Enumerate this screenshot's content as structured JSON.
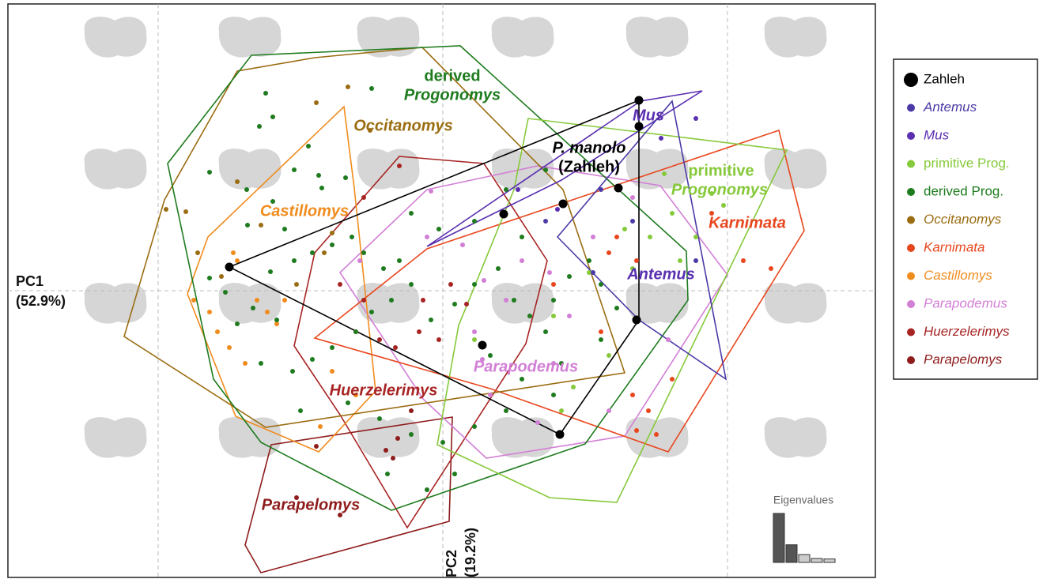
{
  "chart_data": {
    "type": "scatter",
    "xlabel": [
      "PC1",
      "(52.9%)"
    ],
    "ylabel": [
      "PC2",
      "(19.2%)"
    ],
    "xlim": [
      -550,
      547
    ],
    "ylim": [
      -363,
      363
    ],
    "series": [
      {
        "name": "Zahleh",
        "color": "#000000",
        "font_style": "normal",
        "x": [
          248,
          248,
          222,
          152,
          77,
          -270,
          50,
          245,
          148
        ],
        "y": [
          241,
          208,
          130,
          110,
          97,
          30,
          -69,
          -37,
          -182
        ],
        "hull_x": [
          -270,
          248,
          248,
          148
        ],
        "hull_y": [
          30,
          241,
          -37,
          -182
        ]
      },
      {
        "name": "Antemus",
        "color": "#4b3aa6",
        "font_style": "italic",
        "x": [
          130,
          190,
          240,
          200,
          320
        ],
        "y": [
          88,
          23,
          88,
          128,
          38
        ],
        "hull_x": [
          145,
          290,
          358,
          248
        ],
        "hull_y": [
          68,
          240,
          -112,
          -37
        ]
      },
      {
        "name": "Mus",
        "color": "#5a2fb0",
        "font_style": "italic",
        "x": [
          276,
          95,
          145,
          320
        ],
        "y": [
          193,
          128,
          103,
          218
        ],
        "hull_x": [
          -20,
          250,
          328,
          150
        ],
        "hull_y": [
          56,
          240,
          253,
          140
        ]
      },
      {
        "name": "primitive Prog.",
        "color": "#86c93a",
        "font_style": "normal",
        "x": [
          280,
          340,
          290,
          262,
          300,
          240,
          185,
          230,
          140,
          165,
          150,
          210,
          40,
          320,
          355
        ],
        "y": [
          148,
          123,
          98,
          68,
          38,
          28,
          23,
          78,
          -32,
          -122,
          -152,
          -82,
          -62,
          68,
          108
        ],
        "hull_x": [
          108,
          435,
          220,
          135,
          -7,
          20,
          90
        ],
        "hull_y": [
          218,
          178,
          -268,
          -262,
          -195,
          -44,
          128
        ]
      },
      {
        "name": "derived Prog.",
        "color": "#1e7b1e",
        "font_style": "normal",
        "x": [
          -90,
          -224,
          -215,
          -232,
          -248,
          -295,
          -188,
          -157,
          -153,
          -123,
          -215,
          -247,
          -295,
          -218,
          -188,
          -165,
          -140,
          -115,
          -100,
          -75,
          -55,
          -40,
          -65,
          -90,
          -110,
          -140,
          -165,
          -190,
          -230,
          -260,
          -275,
          -240,
          -210,
          -15,
          15,
          40,
          70,
          90,
          110,
          130,
          140,
          160,
          185,
          200,
          220,
          150,
          100,
          80,
          40,
          0,
          -40,
          -80,
          -120,
          -180,
          15,
          -20,
          -70,
          60,
          100,
          130,
          80,
          -170,
          -200,
          -40,
          -5,
          40,
          140,
          200
        ],
        "y": [
          256,
          250,
          220,
          208,
          128,
          150,
          153,
          146,
          130,
          143,
          113,
          83,
          16,
          24,
          38,
          48,
          58,
          68,
          48,
          28,
          38,
          8,
          -12,
          -27,
          -52,
          -72,
          -87,
          -102,
          -92,
          -42,
          -2,
          -22,
          -37,
          -37,
          -17,
          8,
          28,
          -12,
          -32,
          -52,
          -12,
          18,
          38,
          8,
          -22,
          -92,
          -112,
          -152,
          -172,
          -192,
          -182,
          -162,
          -142,
          -152,
          -232,
          -252,
          -232,
          -82,
          68,
          153,
          128,
          183,
          78,
          98,
          78,
          88,
          -132,
          -62
        ],
        "hull_x": [
          -242,
          22,
          308,
          310,
          180,
          -65,
          -230,
          -290,
          -348
        ],
        "hull_y": [
          298,
          310,
          50,
          -12,
          -194,
          -278,
          -192,
          -112,
          161
        ]
      },
      {
        "name": "Occitanomys",
        "color": "#9b6d12",
        "font_style": "italic",
        "x": [
          -160,
          -120,
          -325,
          -260,
          -230,
          -150,
          -280,
          -185,
          -140,
          -92,
          -350,
          -310
        ],
        "y": [
          238,
          258,
          100,
          138,
          83,
          48,
          18,
          8,
          73,
          203,
          103,
          48
        ],
        "hull_x": [
          -162,
          -26,
          152,
          230,
          -224,
          -403,
          -352,
          -260
        ],
        "hull_y": [
          295,
          308,
          128,
          -104,
          -173,
          -58,
          115,
          278
        ]
      },
      {
        "name": "Karnimata",
        "color": "#e8471e",
        "font_style": "italic",
        "x": [
          340,
          380,
          415,
          220,
          245,
          210,
          240,
          260,
          270,
          290,
          140,
          200,
          245
        ],
        "y": [
          98,
          38,
          28,
          68,
          38,
          48,
          -132,
          -152,
          -182,
          -112,
          8,
          -52,
          -177
        ],
        "hull_x": [
          -20,
          425,
          457,
          285,
          60,
          -162
        ],
        "hull_y": [
          53,
          203,
          76,
          -204,
          -124,
          -60
        ]
      },
      {
        "name": "Castillomys",
        "color": "#f08c1e",
        "font_style": "italic",
        "x": [
          -265,
          -315,
          -285,
          -270,
          -235,
          -222,
          -210,
          -200,
          -250,
          -155,
          -110,
          -260,
          -295,
          -140
        ],
        "y": [
          48,
          -12,
          -52,
          -72,
          -12,
          -27,
          -42,
          -12,
          -92,
          -172,
          -132,
          38,
          -27,
          -102
        ],
        "hull_x": [
          -125,
          -112,
          -85,
          -157,
          -262,
          -323,
          -297
        ],
        "hull_y": [
          233,
          130,
          -127,
          -204,
          -159,
          -4,
          68
        ]
      },
      {
        "name": "Parapodemus",
        "color": "#d27fd6",
        "font_style": "italic",
        "x": [
          -15,
          -20,
          52,
          80,
          100,
          135,
          160,
          140,
          60,
          50,
          25,
          190,
          240,
          285,
          210,
          120,
          -105,
          40
        ],
        "y": [
          126,
          68,
          13,
          -12,
          38,
          23,
          -32,
          -92,
          -132,
          -87,
          58,
          68,
          118,
          -62,
          -152,
          -167,
          38,
          -52
        ],
        "hull_x": [
          -20,
          120,
          275,
          360,
          230,
          55,
          -25,
          -130
        ],
        "hull_y": [
          128,
          158,
          133,
          20,
          -184,
          -212,
          -137,
          23
        ]
      },
      {
        "name": "Huerzelerimys",
        "color": "#a82424",
        "font_style": "italic",
        "x": [
          -130,
          -100,
          -80,
          -60,
          -30,
          -5,
          10,
          30,
          -25,
          -110,
          -55,
          -100
        ],
        "y": [
          8,
          -12,
          -62,
          -72,
          -52,
          -62,
          8,
          -17,
          -12,
          -52,
          158,
          118
        ],
        "hull_x": [
          -55,
          52,
          132,
          105,
          -45,
          -130,
          -188,
          -162
        ],
        "hull_y": [
          170,
          161,
          38,
          -67,
          -300,
          -157,
          -70,
          48
        ]
      },
      {
        "name": "Parapelomys",
        "color": "#8f1c1c",
        "font_style": "italic",
        "x": [
          -72,
          -63,
          -57,
          -40,
          -185,
          -130,
          -160
        ],
        "y": [
          -202,
          -212,
          -187,
          -152,
          -262,
          -284,
          -197
        ],
        "hull_x": [
          -217,
          12,
          8,
          -230,
          -250
        ],
        "hull_y": [
          -195,
          -160,
          -292,
          -357,
          -322
        ]
      }
    ],
    "annotations": [
      {
        "text": "derived",
        "color": "#1e7b1e",
        "font_style": "normal"
      },
      {
        "text": "Progonomys",
        "color": "#1e7b1e",
        "font_style": "italic"
      },
      {
        "text": "Occitanomys",
        "color": "#9b6d12",
        "font_style": "italic"
      },
      {
        "text": "Mus",
        "color": "#5a2fb0",
        "font_style": "italic"
      },
      {
        "text": "P. manolo",
        "color": "#000000",
        "font_style": "italic"
      },
      {
        "text": "(Zahleh)",
        "color": "#000000",
        "font_style": "normal"
      },
      {
        "text": "primitive",
        "color": "#86c93a",
        "font_style": "normal"
      },
      {
        "text": "Progonomys",
        "color": "#86c93a",
        "font_style": "italic"
      },
      {
        "text": "Karnimata",
        "color": "#e8471e",
        "font_style": "italic"
      },
      {
        "text": "Castillomys",
        "color": "#f08c1e",
        "font_style": "italic"
      },
      {
        "text": "Antemus",
        "color": "#5a30b0",
        "font_style": "italic"
      },
      {
        "text": "Parapodemus",
        "color": "#d27fd6",
        "font_style": "italic"
      },
      {
        "text": "Huerzelerimys",
        "color": "#a82424",
        "font_style": "italic"
      },
      {
        "text": "Parapelomys",
        "color": "#8f1c1c",
        "font_style": "italic"
      }
    ],
    "inset": {
      "title": "Eigenvalues",
      "values": [
        1,
        0.36,
        0.16,
        0.08,
        0.07
      ],
      "colors": [
        "#555555",
        "#555555",
        "#cccccc",
        "#cccccc",
        "#cccccc"
      ]
    }
  }
}
